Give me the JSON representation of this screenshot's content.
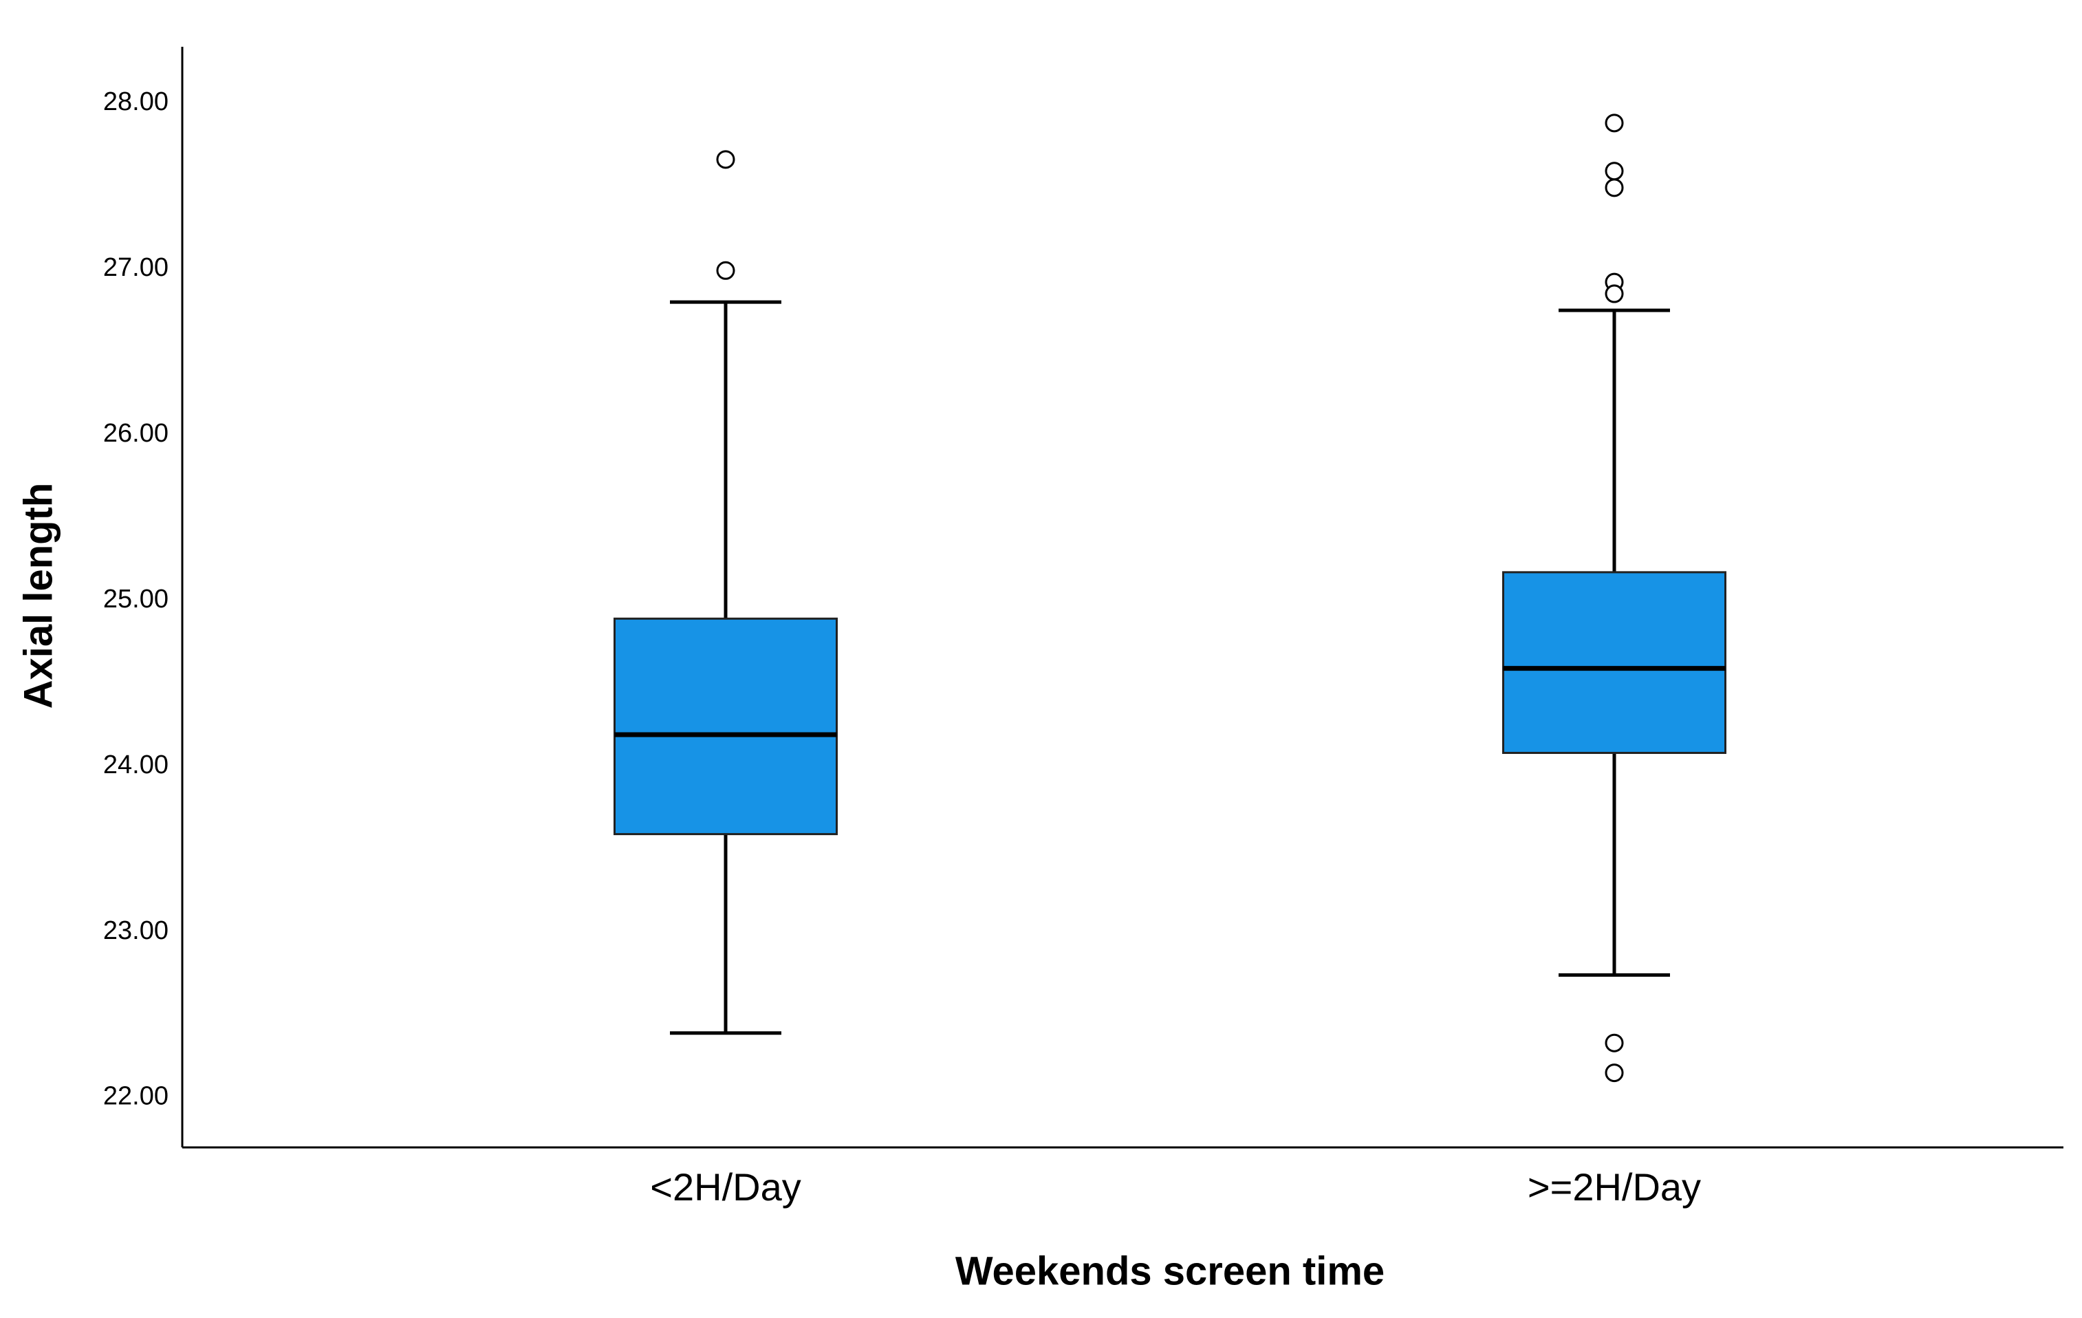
{
  "chart_data": {
    "type": "box",
    "x_label": "Weekends screen time",
    "y_label": "Axial length",
    "categories": [
      "<2H/Day",
      ">=2H/Day"
    ],
    "color": "#1793e6",
    "boxes": [
      {
        "whisker_low": 22.39,
        "q1": 23.59,
        "median": 24.19,
        "q3": 24.89,
        "whisker_high": 26.8,
        "outliers": [
          27.66,
          26.99
        ]
      },
      {
        "whisker_low": 22.74,
        "q1": 24.08,
        "median": 24.59,
        "q3": 25.17,
        "whisker_high": 26.75,
        "outliers": [
          27.88,
          27.59,
          27.49,
          26.92,
          26.85,
          22.33,
          22.15
        ]
      }
    ],
    "ylim": [
      21.7,
      28.34
    ],
    "yticks": [
      {
        "value": 22,
        "label": "22.00"
      },
      {
        "value": 23,
        "label": "23.00"
      },
      {
        "value": 24,
        "label": "24.00"
      },
      {
        "value": 25,
        "label": "25.00"
      },
      {
        "value": 26,
        "label": "26.00"
      },
      {
        "value": 27,
        "label": "27.00"
      },
      {
        "value": 28,
        "label": "28.00"
      }
    ]
  }
}
